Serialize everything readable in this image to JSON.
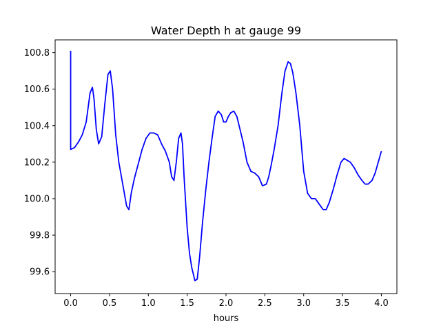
{
  "chart_data": {
    "type": "line",
    "title": "Water Depth h at gauge 99",
    "xlabel": "hours",
    "ylabel": "",
    "xlim": [
      -0.2,
      4.2
    ],
    "ylim": [
      99.48,
      100.87
    ],
    "xticks": [
      0.0,
      0.5,
      1.0,
      1.5,
      2.0,
      2.5,
      3.0,
      3.5,
      4.0
    ],
    "xtick_labels": [
      "0.0",
      "0.5",
      "1.0",
      "1.5",
      "2.0",
      "2.5",
      "3.0",
      "3.5",
      "4.0"
    ],
    "yticks": [
      99.6,
      99.8,
      100.0,
      100.2,
      100.4,
      100.6,
      100.8
    ],
    "ytick_labels": [
      "99.6",
      "99.8",
      "100.0",
      "100.2",
      "100.4",
      "100.6",
      "100.8"
    ],
    "grid": false,
    "legend": "none",
    "series": [
      {
        "color": "#0000ff",
        "x": [
          0.0,
          0.0,
          0.0,
          0.05,
          0.1,
          0.15,
          0.2,
          0.25,
          0.28,
          0.3,
          0.33,
          0.36,
          0.4,
          0.44,
          0.48,
          0.51,
          0.54,
          0.58,
          0.62,
          0.67,
          0.72,
          0.75,
          0.78,
          0.82,
          0.87,
          0.92,
          0.97,
          1.02,
          1.07,
          1.12,
          1.17,
          1.22,
          1.27,
          1.3,
          1.33,
          1.36,
          1.39,
          1.42,
          1.44,
          1.46,
          1.48,
          1.5,
          1.53,
          1.56,
          1.6,
          1.63,
          1.66,
          1.7,
          1.74,
          1.78,
          1.82,
          1.86,
          1.9,
          1.94,
          1.97,
          2.0,
          2.03,
          2.06,
          2.1,
          2.14,
          2.18,
          2.22,
          2.27,
          2.32,
          2.37,
          2.42,
          2.47,
          2.52,
          2.55,
          2.58,
          2.62,
          2.67,
          2.72,
          2.76,
          2.8,
          2.83,
          2.86,
          2.9,
          2.95,
          3.0,
          3.05,
          3.1,
          3.15,
          3.2,
          3.25,
          3.29,
          3.33,
          3.38,
          3.43,
          3.48,
          3.52,
          3.56,
          3.6,
          3.65,
          3.7,
          3.75,
          3.79,
          3.83,
          3.88,
          3.92,
          3.96,
          4.0
        ],
        "y": [
          100.81,
          100.27,
          100.27,
          100.28,
          100.31,
          100.35,
          100.42,
          100.58,
          100.61,
          100.55,
          100.38,
          100.3,
          100.34,
          100.52,
          100.68,
          100.7,
          100.6,
          100.35,
          100.2,
          100.08,
          99.96,
          99.94,
          100.03,
          100.11,
          100.19,
          100.27,
          100.33,
          100.36,
          100.36,
          100.35,
          100.3,
          100.26,
          100.2,
          100.12,
          100.1,
          100.2,
          100.33,
          100.36,
          100.3,
          100.12,
          99.98,
          99.84,
          99.7,
          99.62,
          99.55,
          99.56,
          99.68,
          99.88,
          100.05,
          100.2,
          100.33,
          100.45,
          100.48,
          100.46,
          100.42,
          100.42,
          100.45,
          100.47,
          100.48,
          100.45,
          100.38,
          100.31,
          100.2,
          100.15,
          100.14,
          100.12,
          100.07,
          100.08,
          100.12,
          100.18,
          100.27,
          100.4,
          100.58,
          100.7,
          100.75,
          100.74,
          100.69,
          100.58,
          100.4,
          100.15,
          100.03,
          100.0,
          100.0,
          99.97,
          99.94,
          99.94,
          99.98,
          100.05,
          100.13,
          100.2,
          100.22,
          100.21,
          100.2,
          100.17,
          100.13,
          100.1,
          100.08,
          100.08,
          100.1,
          100.14,
          100.2,
          100.26
        ]
      }
    ]
  }
}
